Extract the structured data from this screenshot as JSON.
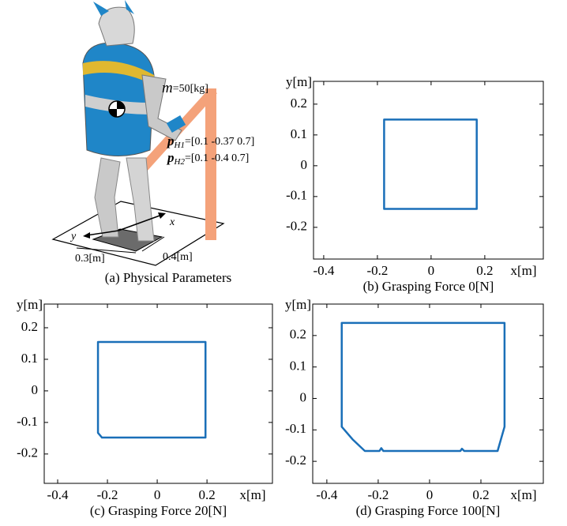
{
  "figure_a": {
    "caption": "(a) Physical Parameters",
    "mass": {
      "symbol": "m",
      "text": "=50[kg]"
    },
    "hand1": {
      "symbol": "p",
      "subscript": "H1",
      "text": "=[0.1 -0.37 0.7]"
    },
    "hand2": {
      "symbol": "p",
      "subscript": "H2",
      "text": "=[0.1 -0.4 0.7]"
    },
    "axis_x": "x",
    "axis_y": "y",
    "width": "0.3[m]",
    "depth": "0.4[m]"
  },
  "chart_data": [
    {
      "type": "line",
      "caption": "(b) Grasping Force 0[N]",
      "xlabel": "x[m]",
      "ylabel": "y[m]",
      "xlim": [
        -0.438,
        0.418
      ],
      "ylim": [
        -0.303,
        0.274
      ],
      "xticks": [
        -0.4,
        -0.2,
        0,
        0.2
      ],
      "yticks": [
        -0.2,
        -0.1,
        0,
        0.1,
        0.2
      ],
      "closed": true,
      "series": [
        {
          "color": "#1a6fb8",
          "x": [
            -0.175,
            -0.175,
            0.17,
            0.17
          ],
          "values": [
            0.15,
            -0.14,
            -0.14,
            0.15
          ]
        }
      ]
    },
    {
      "type": "line",
      "caption": "(c) Grasping Force 20[N]",
      "xlabel": "x[m]",
      "ylabel": "y[m]",
      "xlim": [
        -0.454,
        0.463
      ],
      "ylim": [
        -0.293,
        0.275
      ],
      "xticks": [
        -0.4,
        -0.2,
        0,
        0.2
      ],
      "yticks": [
        -0.2,
        -0.1,
        0,
        0.1,
        0.2
      ],
      "closed": true,
      "series": [
        {
          "color": "#1a6fb8",
          "x": [
            -0.238,
            -0.238,
            -0.222,
            0.194,
            0.194
          ],
          "values": [
            0.155,
            -0.133,
            -0.148,
            -0.148,
            0.155
          ]
        }
      ]
    },
    {
      "type": "line",
      "caption": "(d) Grasping Force 100[N]",
      "xlabel": "x[m]",
      "ylabel": "y[m]",
      "xlim": [
        -0.455,
        0.443
      ],
      "ylim": [
        -0.27,
        0.3
      ],
      "xticks": [
        -0.4,
        -0.2,
        0,
        0.2
      ],
      "yticks": [
        -0.2,
        -0.1,
        0,
        0.1,
        0.2
      ],
      "closed": true,
      "series": [
        {
          "color": "#1a6fb8",
          "x": [
            -0.342,
            -0.342,
            -0.3,
            -0.252,
            -0.195,
            -0.188,
            -0.18,
            0.12,
            0.126,
            0.135,
            0.265,
            0.292,
            0.292
          ],
          "values": [
            0.24,
            -0.09,
            -0.13,
            -0.167,
            -0.167,
            -0.158,
            -0.167,
            -0.167,
            -0.16,
            -0.167,
            -0.167,
            -0.09,
            0.24
          ]
        }
      ]
    }
  ]
}
